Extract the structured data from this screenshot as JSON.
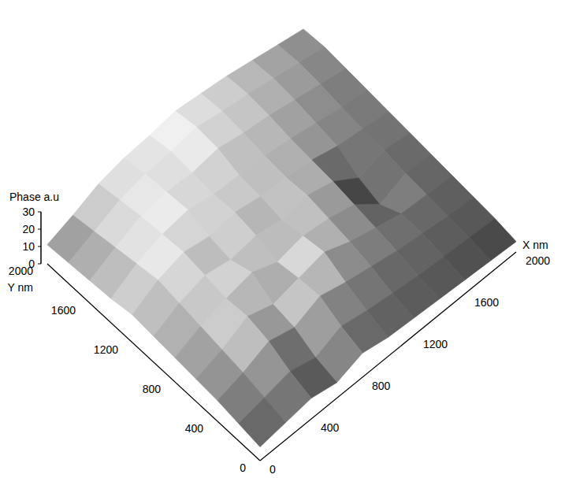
{
  "chart_data": {
    "type": "surface",
    "x_label": "X nm",
    "y_label": "Y nm",
    "z_label": "Phase a.u",
    "xlim": [
      0,
      2000
    ],
    "xticks": [
      0,
      400,
      800,
      1200,
      1600,
      2000
    ],
    "ylim": [
      0,
      2000
    ],
    "yticks": [
      0,
      400,
      800,
      1200,
      1600,
      2000
    ],
    "zlim": [
      0,
      30
    ],
    "zticks": [
      0,
      10,
      20,
      30
    ],
    "x": [
      0,
      200,
      400,
      600,
      800,
      1000,
      1200,
      1400,
      1600,
      1800,
      2000
    ],
    "y": [
      0,
      200,
      400,
      600,
      800,
      1000,
      1200,
      1400,
      1600,
      1800,
      2000
    ],
    "z": [
      [
        8,
        10,
        12,
        9,
        14,
        11,
        10,
        9,
        8,
        7,
        6
      ],
      [
        10,
        13,
        16,
        12,
        18,
        15,
        13,
        11,
        10,
        9,
        8
      ],
      [
        12,
        16,
        22,
        18,
        24,
        20,
        17,
        14,
        12,
        10,
        9
      ],
      [
        13,
        18,
        25,
        20,
        23,
        26,
        20,
        16,
        12,
        11,
        10
      ],
      [
        14,
        20,
        24,
        27,
        21,
        24,
        22,
        18,
        6,
        12,
        11
      ],
      [
        15,
        22,
        26,
        23,
        25,
        22,
        24,
        20,
        10,
        14,
        12
      ],
      [
        16,
        24,
        28,
        25,
        27,
        24,
        23,
        21,
        17,
        15,
        13
      ],
      [
        14,
        22,
        27,
        29,
        26,
        25,
        24,
        22,
        19,
        16,
        14
      ],
      [
        13,
        20,
        26,
        28,
        27,
        29,
        26,
        24,
        21,
        18,
        15
      ],
      [
        12,
        18,
        24,
        27,
        28,
        30,
        27,
        25,
        22,
        19,
        16
      ],
      [
        11,
        16,
        22,
        25,
        26,
        28,
        26,
        24,
        21,
        18,
        15
      ]
    ]
  }
}
